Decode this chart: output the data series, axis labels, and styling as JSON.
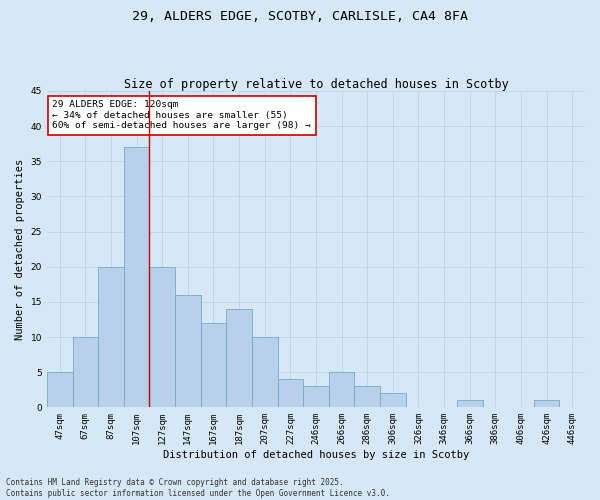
{
  "title1": "29, ALDERS EDGE, SCOTBY, CARLISLE, CA4 8FA",
  "title2": "Size of property relative to detached houses in Scotby",
  "xlabel": "Distribution of detached houses by size in Scotby",
  "ylabel": "Number of detached properties",
  "categories": [
    "47sqm",
    "67sqm",
    "87sqm",
    "107sqm",
    "127sqm",
    "147sqm",
    "167sqm",
    "187sqm",
    "207sqm",
    "227sqm",
    "246sqm",
    "266sqm",
    "286sqm",
    "306sqm",
    "326sqm",
    "346sqm",
    "366sqm",
    "386sqm",
    "406sqm",
    "426sqm",
    "446sqm"
  ],
  "values": [
    5,
    10,
    20,
    37,
    20,
    16,
    12,
    14,
    10,
    4,
    3,
    5,
    3,
    2,
    0,
    0,
    1,
    0,
    0,
    1,
    0
  ],
  "bar_color": "#b8d0ea",
  "bar_edge_color": "#6fabd0",
  "grid_color": "#b8cfe0",
  "background_color": "#d6e8f5",
  "vline_x": 3.5,
  "vline_color": "#cc0000",
  "annotation_text": "29 ALDERS EDGE: 120sqm\n← 34% of detached houses are smaller (55)\n60% of semi-detached houses are larger (98) →",
  "annotation_box_color": "#ffffff",
  "annotation_box_edge": "#cc0000",
  "ylim": [
    0,
    45
  ],
  "yticks": [
    0,
    5,
    10,
    15,
    20,
    25,
    30,
    35,
    40,
    45
  ],
  "footer": "Contains HM Land Registry data © Crown copyright and database right 2025.\nContains public sector information licensed under the Open Government Licence v3.0.",
  "title_fontsize": 9.5,
  "subtitle_fontsize": 8.5,
  "axis_label_fontsize": 7.5,
  "tick_fontsize": 6.5,
  "annotation_fontsize": 6.8,
  "footer_fontsize": 5.5
}
